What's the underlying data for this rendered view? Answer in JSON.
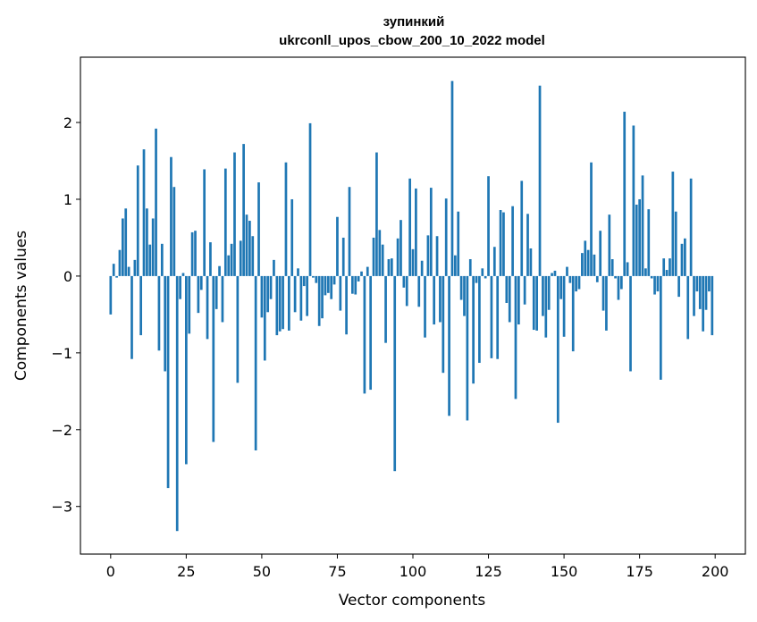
{
  "chart_data": {
    "type": "bar",
    "title": "зупинкий",
    "subtitle": "ukrconll_upos_cbow_200_10_2022 model",
    "xlabel": "Vector components",
    "ylabel": "Components values",
    "xlim": [
      -10,
      210
    ],
    "ylim": [
      -3.62,
      2.85
    ],
    "xticks": [
      0,
      25,
      50,
      75,
      100,
      125,
      150,
      175,
      200
    ],
    "yticks": [
      -3,
      -2,
      -1,
      0,
      1,
      2
    ],
    "xtick_labels": [
      "0",
      "25",
      "50",
      "75",
      "100",
      "125",
      "150",
      "175",
      "200"
    ],
    "ytick_labels": [
      "−3",
      "−2",
      "−1",
      "0",
      "1",
      "2"
    ],
    "color": "#1f77b4",
    "x": [
      0,
      1,
      2,
      3,
      4,
      5,
      6,
      7,
      8,
      9,
      10,
      11,
      12,
      13,
      14,
      15,
      16,
      17,
      18,
      19,
      20,
      21,
      22,
      23,
      24,
      25,
      26,
      27,
      28,
      29,
      30,
      31,
      32,
      33,
      34,
      35,
      36,
      37,
      38,
      39,
      40,
      41,
      42,
      43,
      44,
      45,
      46,
      47,
      48,
      49,
      50,
      51,
      52,
      53,
      54,
      55,
      56,
      57,
      58,
      59,
      60,
      61,
      62,
      63,
      64,
      65,
      66,
      67,
      68,
      69,
      70,
      71,
      72,
      73,
      74,
      75,
      76,
      77,
      78,
      79,
      80,
      81,
      82,
      83,
      84,
      85,
      86,
      87,
      88,
      89,
      90,
      91,
      92,
      93,
      94,
      95,
      96,
      97,
      98,
      99,
      100,
      101,
      102,
      103,
      104,
      105,
      106,
      107,
      108,
      109,
      110,
      111,
      112,
      113,
      114,
      115,
      116,
      117,
      118,
      119,
      120,
      121,
      122,
      123,
      124,
      125,
      126,
      127,
      128,
      129,
      130,
      131,
      132,
      133,
      134,
      135,
      136,
      137,
      138,
      139,
      140,
      141,
      142,
      143,
      144,
      145,
      146,
      147,
      148,
      149,
      150,
      151,
      152,
      153,
      154,
      155,
      156,
      157,
      158,
      159,
      160,
      161,
      162,
      163,
      164,
      165,
      166,
      167,
      168,
      169,
      170,
      171,
      172,
      173,
      174,
      175,
      176,
      177,
      178,
      179,
      180,
      181,
      182,
      183,
      184,
      185,
      186,
      187,
      188,
      189,
      190,
      191,
      192,
      193,
      194,
      195,
      196,
      197,
      198,
      199
    ],
    "values": [
      -0.5,
      0.16,
      -0.02,
      0.34,
      0.75,
      0.88,
      0.12,
      -1.08,
      0.21,
      1.44,
      -0.77,
      1.65,
      0.88,
      0.41,
      0.75,
      1.92,
      -0.97,
      0.42,
      -1.24,
      -2.76,
      1.55,
      1.16,
      -3.32,
      -0.3,
      0.04,
      -2.45,
      -0.75,
      0.57,
      0.59,
      -0.48,
      -0.18,
      1.39,
      -0.82,
      0.44,
      -2.16,
      -0.43,
      0.13,
      -0.6,
      1.4,
      0.27,
      0.42,
      1.61,
      -1.39,
      0.46,
      1.72,
      0.8,
      0.72,
      0.52,
      -2.27,
      1.22,
      -0.54,
      -1.1,
      -0.47,
      -0.3,
      0.21,
      -0.77,
      -0.72,
      -0.69,
      1.48,
      -0.71,
      1.0,
      -0.47,
      0.1,
      -0.58,
      -0.13,
      -0.52,
      1.99,
      -0.02,
      -0.09,
      -0.65,
      -0.55,
      -0.25,
      -0.22,
      -0.3,
      -0.11,
      0.77,
      -0.45,
      0.5,
      -0.76,
      1.16,
      -0.23,
      -0.24,
      -0.07,
      0.06,
      -1.53,
      0.12,
      -1.48,
      0.5,
      1.61,
      0.6,
      0.41,
      -0.87,
      0.22,
      0.23,
      -2.54,
      0.49,
      0.73,
      -0.15,
      -0.39,
      1.27,
      0.35,
      1.14,
      -0.4,
      0.2,
      -0.8,
      0.53,
      1.15,
      -0.63,
      0.52,
      -0.6,
      -1.26,
      1.01,
      -1.82,
      2.54,
      0.27,
      0.84,
      -0.31,
      -0.52,
      -1.88,
      0.22,
      -1.4,
      -0.09,
      -1.13,
      0.1,
      -0.03,
      1.3,
      -1.07,
      0.38,
      -1.08,
      0.86,
      0.83,
      -0.35,
      -0.6,
      0.91,
      -1.6,
      -0.63,
      1.24,
      -0.37,
      0.81,
      0.36,
      -0.7,
      -0.71,
      2.48,
      -0.52,
      -0.8,
      -0.44,
      0.04,
      0.07,
      -1.91,
      -0.3,
      -0.79,
      0.12,
      -0.09,
      -0.98,
      -0.2,
      -0.17,
      0.3,
      0.46,
      0.34,
      1.48,
      0.28,
      -0.08,
      0.59,
      -0.45,
      -0.71,
      0.8,
      0.22,
      -0.03,
      -0.31,
      -0.17,
      2.14,
      0.18,
      -1.24,
      1.96,
      0.93,
      1.0,
      1.31,
      0.1,
      0.87,
      -0.03,
      -0.24,
      -0.2,
      -1.35,
      0.23,
      0.08,
      0.23,
      1.36,
      0.84,
      -0.27,
      0.42,
      0.49,
      -0.82,
      1.27,
      -0.52,
      -0.2,
      -0.43,
      -0.72,
      -0.44,
      -0.2,
      -0.77
    ]
  }
}
